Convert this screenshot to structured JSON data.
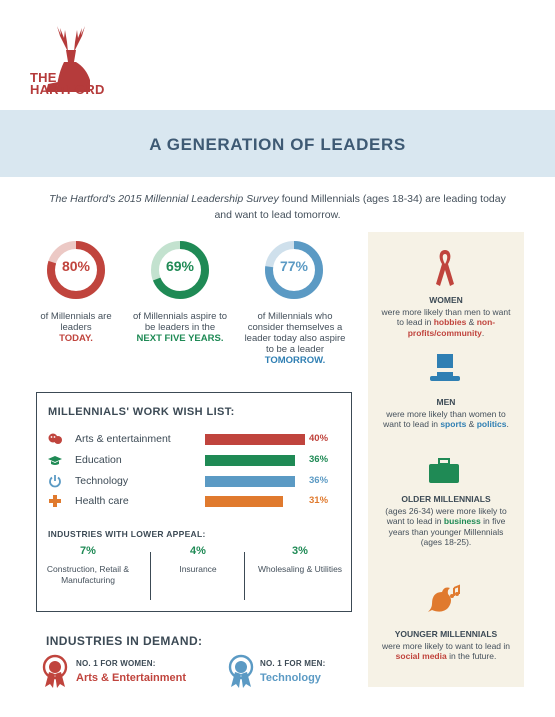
{
  "brand": {
    "name_line1": "THE",
    "name_line2": "HARTFORD"
  },
  "banner": {
    "title": "A GENERATION OF LEADERS"
  },
  "intro": {
    "italic": "The Hartford's 2015 Millennial Leadership Survey",
    "rest": " found Millennials (ages 18-34) are leading today and want to lead tomorrow."
  },
  "stats": [
    {
      "value": "80%",
      "fraction": 0.8,
      "color": "#c0443d",
      "track": "#ecc9c5",
      "text": "of Millennials are leaders",
      "emphasis": "TODAY."
    },
    {
      "value": "69%",
      "fraction": 0.69,
      "color": "#1f8a55",
      "track": "#c3e2cf",
      "text": "of Millennials aspire to be leaders in the",
      "emphasis": "NEXT FIVE YEARS."
    },
    {
      "value": "77%",
      "fraction": 0.77,
      "color": "#5b9ac4",
      "track": "#cfe0ec",
      "text": "of Millennials who consider themselves a leader today also aspire to be a leader",
      "emphasis": "TOMORROW."
    }
  ],
  "wishlist": {
    "title": "MILLENNIALS' WORK WISH LIST:",
    "items": [
      {
        "label": "Arts & entertainment",
        "value": "40%",
        "fraction": 0.4,
        "color": "#c0443d",
        "icon": "masks-icon"
      },
      {
        "label": "Education",
        "value": "36%",
        "fraction": 0.36,
        "color": "#1f8a55",
        "icon": "graduation-cap-icon"
      },
      {
        "label": "Technology",
        "value": "36%",
        "fraction": 0.36,
        "color": "#5b9ac4",
        "icon": "power-icon"
      },
      {
        "label": "Health care",
        "value": "31%",
        "fraction": 0.31,
        "color": "#e07a2e",
        "icon": "medical-cross-icon"
      }
    ],
    "lower_title": "INDUSTRIES WITH LOWER APPEAL:",
    "lower": [
      {
        "value": "7%",
        "label": "Construction, Retail & Manufacturing"
      },
      {
        "value": "4%",
        "label": "Insurance"
      },
      {
        "value": "3%",
        "label": "Wholesaling & Utilities"
      }
    ]
  },
  "demand": {
    "title": "INDUSTRIES IN DEMAND:",
    "items": [
      {
        "sub": "NO. 1 FOR WOMEN:",
        "main": "Arts & Entertainment",
        "color": "#c0443d"
      },
      {
        "sub": "NO. 1 FOR MEN:",
        "main": "Technology",
        "color": "#5b9ac4"
      }
    ]
  },
  "panel": {
    "women": {
      "title": "WOMEN",
      "text1": "were more likely than men to want to lead in ",
      "hl1": "hobbies",
      "mid": " & ",
      "hl2": "non-profits/community",
      "end": "."
    },
    "men": {
      "title": "MEN",
      "text1": "were more likely than women to want to lead in ",
      "hl1": "sports",
      "mid": " & ",
      "hl2": "politics",
      "end": "."
    },
    "older": {
      "title": "OLDER MILLENNIALS",
      "text1": "(ages 26-34) were more likely to want to lead in ",
      "hl1": "business",
      "text2": " in five years than younger Millennials (ages 18-25)."
    },
    "younger": {
      "title": "YOUNGER MILLENNIALS",
      "text1": "were more likely to want to lead in ",
      "hl1": "social media",
      "text2": " in the future."
    }
  }
}
